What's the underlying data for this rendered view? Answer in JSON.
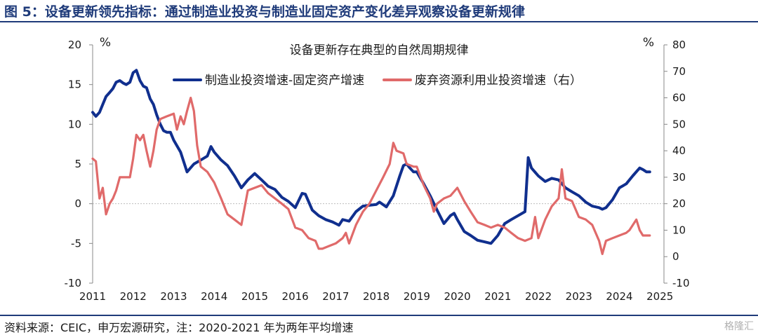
{
  "figure_title": "图 5：设备更新领先指标：通过制造业投资与制造业固定资产变化差异观察设备更新规律",
  "source_note": "资料来源：CEIC，申万宏源研究，注：2020-2021 年为两年平均增速",
  "watermark": "格隆汇",
  "chart_data": {
    "type": "line",
    "title": "设备更新存在典型的自然周期规律",
    "y_left": {
      "unit": "%",
      "range": [
        -10,
        20
      ],
      "ticks": [
        -10,
        -5,
        0,
        5,
        10,
        15,
        20
      ]
    },
    "y_right": {
      "unit": "%",
      "range": [
        -10,
        80
      ],
      "ticks": [
        -10,
        0,
        10,
        20,
        30,
        40,
        50,
        60,
        70,
        80
      ]
    },
    "x_axis": {
      "range": [
        2011,
        2025.1
      ],
      "ticks": [
        2011,
        2012,
        2013,
        2014,
        2015,
        2016,
        2017,
        2018,
        2019,
        2020,
        2021,
        2022,
        2023,
        2024,
        2025
      ]
    },
    "grid": false,
    "legend_position": "top",
    "series": [
      {
        "name": "制造业投资增速-固定资产增速",
        "axis": "left",
        "color": "#102f8e",
        "points": [
          [
            2011.0,
            11.5
          ],
          [
            2011.08,
            11.0
          ],
          [
            2011.17,
            11.5
          ],
          [
            2011.25,
            12.5
          ],
          [
            2011.33,
            13.5
          ],
          [
            2011.42,
            14.0
          ],
          [
            2011.5,
            14.5
          ],
          [
            2011.58,
            15.3
          ],
          [
            2011.67,
            15.5
          ],
          [
            2011.75,
            15.2
          ],
          [
            2011.83,
            15.0
          ],
          [
            2011.92,
            15.3
          ],
          [
            2012.0,
            16.5
          ],
          [
            2012.08,
            16.8
          ],
          [
            2012.17,
            15.5
          ],
          [
            2012.25,
            14.8
          ],
          [
            2012.33,
            14.6
          ],
          [
            2012.42,
            13.2
          ],
          [
            2012.5,
            12.5
          ],
          [
            2012.58,
            11.2
          ],
          [
            2012.67,
            10.0
          ],
          [
            2012.75,
            9.2
          ],
          [
            2012.83,
            9.0
          ],
          [
            2012.92,
            9.0
          ],
          [
            2013.0,
            8.0
          ],
          [
            2013.17,
            6.5
          ],
          [
            2013.33,
            4.0
          ],
          [
            2013.5,
            5.0
          ],
          [
            2013.67,
            5.5
          ],
          [
            2013.83,
            6.0
          ],
          [
            2013.92,
            7.2
          ],
          [
            2014.0,
            6.5
          ],
          [
            2014.17,
            5.5
          ],
          [
            2014.33,
            4.8
          ],
          [
            2014.5,
            3.5
          ],
          [
            2014.67,
            2.0
          ],
          [
            2014.83,
            3.0
          ],
          [
            2015.0,
            3.8
          ],
          [
            2015.17,
            3.0
          ],
          [
            2015.33,
            2.2
          ],
          [
            2015.5,
            1.8
          ],
          [
            2015.67,
            0.8
          ],
          [
            2015.83,
            0.3
          ],
          [
            2016.0,
            -0.5
          ],
          [
            2016.17,
            1.3
          ],
          [
            2016.25,
            1.2
          ],
          [
            2016.42,
            -0.8
          ],
          [
            2016.58,
            -1.5
          ],
          [
            2016.75,
            -2.0
          ],
          [
            2016.92,
            -2.3
          ],
          [
            2017.0,
            -2.5
          ],
          [
            2017.08,
            -2.7
          ],
          [
            2017.17,
            -2.0
          ],
          [
            2017.33,
            -2.2
          ],
          [
            2017.5,
            -1.0
          ],
          [
            2017.67,
            -0.3
          ],
          [
            2017.83,
            -0.2
          ],
          [
            2018.0,
            -0.1
          ],
          [
            2018.08,
            0.2
          ],
          [
            2018.25,
            -0.4
          ],
          [
            2018.42,
            1.0
          ],
          [
            2018.58,
            3.5
          ],
          [
            2018.67,
            4.8
          ],
          [
            2018.75,
            5.0
          ],
          [
            2018.83,
            4.5
          ],
          [
            2018.92,
            4.0
          ],
          [
            2019.0,
            4.0
          ],
          [
            2019.17,
            2.5
          ],
          [
            2019.33,
            1.0
          ],
          [
            2019.5,
            -0.8
          ],
          [
            2019.67,
            -2.5
          ],
          [
            2019.83,
            -1.5
          ],
          [
            2019.92,
            -1.2
          ],
          [
            2020.0,
            -2.0
          ],
          [
            2020.17,
            -3.5
          ],
          [
            2020.33,
            -4.0
          ],
          [
            2020.5,
            -4.6
          ],
          [
            2020.67,
            -4.8
          ],
          [
            2020.83,
            -5.0
          ],
          [
            2021.0,
            -4.0
          ],
          [
            2021.17,
            -2.5
          ],
          [
            2021.33,
            -2.0
          ],
          [
            2021.5,
            -1.5
          ],
          [
            2021.67,
            -1.0
          ],
          [
            2021.75,
            5.8
          ],
          [
            2021.83,
            4.5
          ],
          [
            2022.0,
            3.5
          ],
          [
            2022.17,
            2.8
          ],
          [
            2022.33,
            3.2
          ],
          [
            2022.5,
            3.0
          ],
          [
            2022.67,
            2.0
          ],
          [
            2022.83,
            1.5
          ],
          [
            2023.0,
            1.0
          ],
          [
            2023.17,
            0.2
          ],
          [
            2023.33,
            -0.3
          ],
          [
            2023.5,
            -0.5
          ],
          [
            2023.58,
            -0.7
          ],
          [
            2023.67,
            -0.5
          ],
          [
            2023.83,
            0.5
          ],
          [
            2024.0,
            2.0
          ],
          [
            2024.17,
            2.5
          ],
          [
            2024.33,
            3.5
          ],
          [
            2024.5,
            4.5
          ],
          [
            2024.58,
            4.3
          ],
          [
            2024.67,
            4.0
          ],
          [
            2024.75,
            4.0
          ]
        ]
      },
      {
        "name": "废弃资源利用业投资增速（右）",
        "axis": "right",
        "color": "#e06a6a",
        "points": [
          [
            2011.0,
            37
          ],
          [
            2011.08,
            36
          ],
          [
            2011.17,
            22
          ],
          [
            2011.25,
            26
          ],
          [
            2011.33,
            16
          ],
          [
            2011.42,
            20
          ],
          [
            2011.5,
            22
          ],
          [
            2011.58,
            25
          ],
          [
            2011.67,
            30
          ],
          [
            2011.75,
            30
          ],
          [
            2011.92,
            30
          ],
          [
            2012.0,
            37
          ],
          [
            2012.08,
            46
          ],
          [
            2012.17,
            44
          ],
          [
            2012.25,
            46
          ],
          [
            2012.33,
            40
          ],
          [
            2012.42,
            34
          ],
          [
            2012.5,
            40
          ],
          [
            2012.58,
            48
          ],
          [
            2012.67,
            52
          ],
          [
            2012.83,
            53
          ],
          [
            2013.0,
            54
          ],
          [
            2013.08,
            48
          ],
          [
            2013.17,
            53
          ],
          [
            2013.25,
            50
          ],
          [
            2013.33,
            55
          ],
          [
            2013.42,
            60
          ],
          [
            2013.5,
            55
          ],
          [
            2013.58,
            42
          ],
          [
            2013.67,
            34
          ],
          [
            2013.83,
            32
          ],
          [
            2014.0,
            28
          ],
          [
            2014.17,
            22
          ],
          [
            2014.33,
            16
          ],
          [
            2014.5,
            14
          ],
          [
            2014.67,
            12
          ],
          [
            2014.83,
            25
          ],
          [
            2015.0,
            26
          ],
          [
            2015.17,
            27
          ],
          [
            2015.33,
            24
          ],
          [
            2015.5,
            22
          ],
          [
            2015.67,
            20
          ],
          [
            2015.83,
            18
          ],
          [
            2016.0,
            11
          ],
          [
            2016.17,
            10
          ],
          [
            2016.33,
            7
          ],
          [
            2016.5,
            6
          ],
          [
            2016.58,
            3
          ],
          [
            2016.67,
            3
          ],
          [
            2016.83,
            4
          ],
          [
            2017.0,
            5
          ],
          [
            2017.17,
            7
          ],
          [
            2017.25,
            9
          ],
          [
            2017.33,
            5
          ],
          [
            2017.5,
            12
          ],
          [
            2017.67,
            17
          ],
          [
            2017.83,
            20
          ],
          [
            2018.0,
            25
          ],
          [
            2018.17,
            30
          ],
          [
            2018.33,
            35
          ],
          [
            2018.42,
            43
          ],
          [
            2018.5,
            40
          ],
          [
            2018.67,
            39
          ],
          [
            2018.75,
            35
          ],
          [
            2018.92,
            34
          ],
          [
            2019.0,
            34
          ],
          [
            2019.17,
            27
          ],
          [
            2019.33,
            22
          ],
          [
            2019.42,
            17
          ],
          [
            2019.5,
            20
          ],
          [
            2019.67,
            22
          ],
          [
            2019.83,
            23
          ],
          [
            2020.0,
            26
          ],
          [
            2020.17,
            21
          ],
          [
            2020.33,
            17
          ],
          [
            2020.5,
            13
          ],
          [
            2020.67,
            12
          ],
          [
            2020.83,
            11
          ],
          [
            2021.0,
            12
          ],
          [
            2021.17,
            11
          ],
          [
            2021.33,
            9
          ],
          [
            2021.5,
            7
          ],
          [
            2021.67,
            6
          ],
          [
            2021.83,
            7
          ],
          [
            2021.92,
            15
          ],
          [
            2022.0,
            7
          ],
          [
            2022.17,
            14
          ],
          [
            2022.33,
            19
          ],
          [
            2022.5,
            22
          ],
          [
            2022.58,
            33
          ],
          [
            2022.67,
            22
          ],
          [
            2022.83,
            21
          ],
          [
            2023.0,
            15
          ],
          [
            2023.17,
            14
          ],
          [
            2023.33,
            12
          ],
          [
            2023.5,
            6
          ],
          [
            2023.58,
            1
          ],
          [
            2023.67,
            6
          ],
          [
            2023.83,
            7
          ],
          [
            2024.0,
            8
          ],
          [
            2024.17,
            9
          ],
          [
            2024.25,
            10
          ],
          [
            2024.42,
            14
          ],
          [
            2024.5,
            10
          ],
          [
            2024.58,
            8
          ],
          [
            2024.75,
            8
          ]
        ]
      }
    ]
  }
}
